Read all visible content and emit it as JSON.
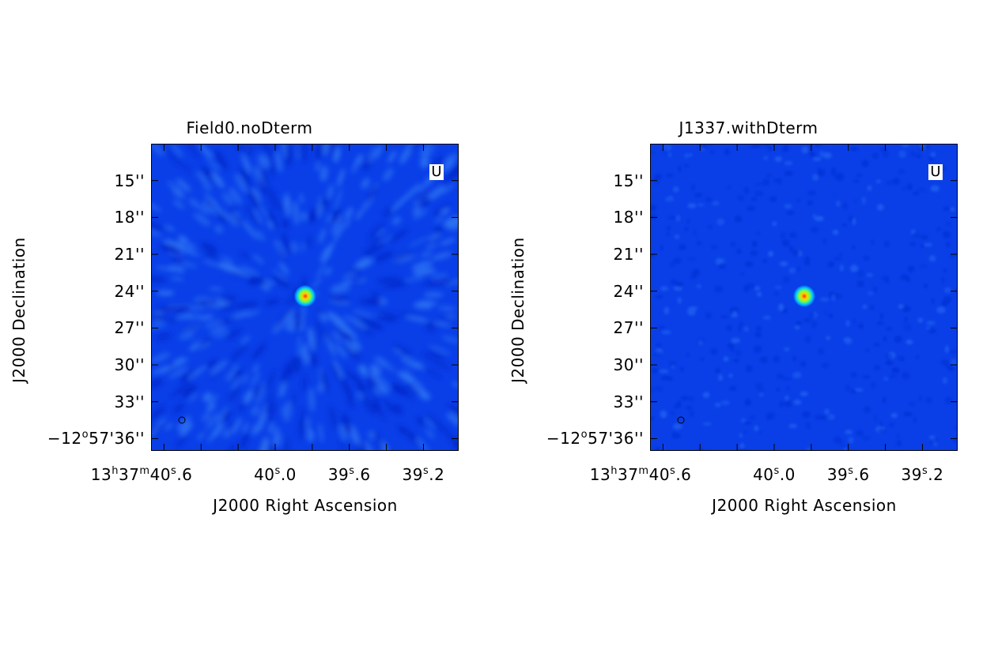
{
  "chart_data": [
    {
      "type": "heatmap",
      "title": "Field0.noDterm",
      "xlabel": "J2000 Right Ascension",
      "ylabel": "J2000 Declination",
      "stokes_label": "U",
      "colormap": "rainbow",
      "background_color": "#0a3fe8",
      "noise_level": "high",
      "source": {
        "ra": "13h37m39.88s",
        "dec": "-12°57'24.6\""
      },
      "yticks": [
        {
          "value": 15,
          "base": "15''",
          "sup": "",
          "tail": ""
        },
        {
          "value": 18,
          "base": "18''",
          "sup": "",
          "tail": ""
        },
        {
          "value": 21,
          "base": "21''",
          "sup": "",
          "tail": ""
        },
        {
          "value": 24,
          "base": "24''",
          "sup": "",
          "tail": ""
        },
        {
          "value": 27,
          "base": "27''",
          "sup": "",
          "tail": ""
        },
        {
          "value": 30,
          "base": "30''",
          "sup": "",
          "tail": ""
        },
        {
          "value": 33,
          "base": "33''",
          "sup": "",
          "tail": ""
        },
        {
          "value": 36,
          "base": "−12",
          "sup": "o",
          "tail": "57'36''"
        }
      ],
      "xticks": [
        {
          "value": 40.6,
          "parts": [
            "13",
            "h",
            "37",
            "m",
            "40",
            "s",
            ".6"
          ]
        },
        {
          "value": 40.0,
          "parts": [
            "40",
            "s",
            ".0"
          ]
        },
        {
          "value": 39.6,
          "parts": [
            "39",
            "s",
            ".6"
          ]
        },
        {
          "value": 39.2,
          "parts": [
            "39",
            "s",
            ".2"
          ]
        }
      ]
    },
    {
      "type": "heatmap",
      "title": "J1337.withDterm",
      "xlabel": "J2000 Right Ascension",
      "ylabel": "J2000 Declination",
      "stokes_label": "U",
      "colormap": "rainbow",
      "background_color": "#0a3fe8",
      "noise_level": "low",
      "source": {
        "ra": "13h37m39.88s",
        "dec": "-12°57'24.6\""
      },
      "yticks": [
        {
          "value": 15,
          "base": "15''",
          "sup": "",
          "tail": ""
        },
        {
          "value": 18,
          "base": "18''",
          "sup": "",
          "tail": ""
        },
        {
          "value": 21,
          "base": "21''",
          "sup": "",
          "tail": ""
        },
        {
          "value": 24,
          "base": "24''",
          "sup": "",
          "tail": ""
        },
        {
          "value": 27,
          "base": "27''",
          "sup": "",
          "tail": ""
        },
        {
          "value": 30,
          "base": "30''",
          "sup": "",
          "tail": ""
        },
        {
          "value": 33,
          "base": "33''",
          "sup": "",
          "tail": ""
        },
        {
          "value": 36,
          "base": "−12",
          "sup": "o",
          "tail": "57'36''"
        }
      ],
      "xticks": [
        {
          "value": 40.6,
          "parts": [
            "13",
            "h",
            "37",
            "m",
            "40",
            "s",
            ".6"
          ]
        },
        {
          "value": 40.0,
          "parts": [
            "40",
            "s",
            ".0"
          ]
        },
        {
          "value": 39.6,
          "parts": [
            "39",
            "s",
            ".6"
          ]
        },
        {
          "value": 39.2,
          "parts": [
            "39",
            "s",
            ".2"
          ]
        }
      ]
    }
  ]
}
